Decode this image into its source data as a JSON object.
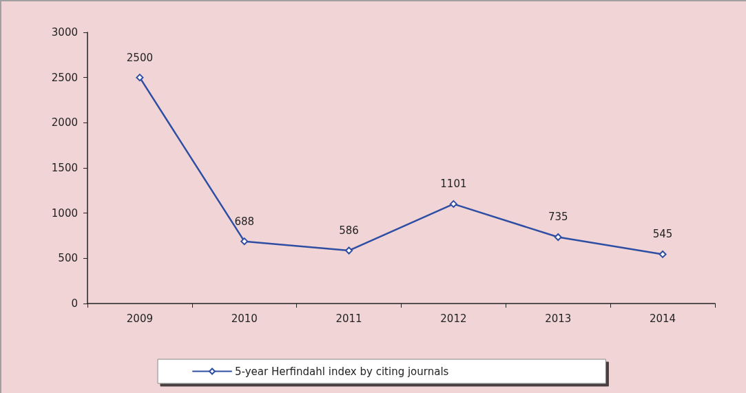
{
  "chart_data": {
    "type": "line",
    "categories": [
      "2009",
      "2010",
      "2011",
      "2012",
      "2013",
      "2014"
    ],
    "series": [
      {
        "name": "5-year Herfindahl index by citing journals",
        "color": "#2e4ea3",
        "values": [
          2500,
          688,
          586,
          1101,
          735,
          545
        ]
      }
    ],
    "ylim": [
      0,
      3000
    ],
    "yticks": [
      0,
      500,
      1000,
      1500,
      2000,
      2500,
      3000
    ],
    "grid": false,
    "legend": "bottom",
    "marker": "diamond",
    "line_style": "solid",
    "data_labels": true
  }
}
